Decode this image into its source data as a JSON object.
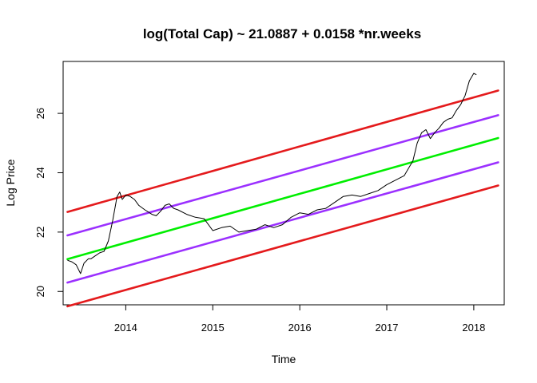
{
  "chart_data": {
    "type": "line",
    "title": "log(Total Cap) ~ 21.0887 + 0.0158 *nr.weeks",
    "xlabel": "Time",
    "ylabel": "Log Price",
    "xlim": [
      2013.28,
      2018.35
    ],
    "ylim": [
      19.55,
      27.75
    ],
    "x_ticks": [
      2014,
      2015,
      2016,
      2017,
      2018
    ],
    "x_tick_labels": [
      "2014",
      "2015",
      "2016",
      "2017",
      "2018"
    ],
    "y_ticks": [
      20,
      22,
      24,
      26
    ],
    "y_tick_labels": [
      "20",
      "22",
      "24",
      "26"
    ],
    "grid": false,
    "bands": [
      {
        "color": "#e41a1c",
        "x": [
          2013.33,
          2018.28
        ],
        "y": [
          22.68,
          26.77
        ]
      },
      {
        "color": "#9b30ff",
        "x": [
          2013.33,
          2018.28
        ],
        "y": [
          21.89,
          25.94
        ]
      },
      {
        "color": "#00ee00",
        "x": [
          2013.33,
          2018.28
        ],
        "y": [
          21.09,
          25.17
        ]
      },
      {
        "color": "#9b30ff",
        "x": [
          2013.33,
          2018.28
        ],
        "y": [
          20.3,
          24.35
        ]
      },
      {
        "color": "#e41a1c",
        "x": [
          2013.33,
          2018.28
        ],
        "y": [
          19.5,
          23.57
        ]
      }
    ],
    "series": [
      {
        "color": "#000000",
        "x": [
          2013.33,
          2013.38,
          2013.43,
          2013.48,
          2013.52,
          2013.57,
          2013.6,
          2013.65,
          2013.7,
          2013.75,
          2013.8,
          2013.85,
          2013.9,
          2013.93,
          2013.96,
          2014.0,
          2014.05,
          2014.1,
          2014.15,
          2014.22,
          2014.3,
          2014.35,
          2014.4,
          2014.45,
          2014.5,
          2014.55,
          2014.6,
          2014.7,
          2014.8,
          2014.9,
          2015.0,
          2015.1,
          2015.2,
          2015.3,
          2015.4,
          2015.5,
          2015.6,
          2015.7,
          2015.8,
          2015.9,
          2016.0,
          2016.1,
          2016.2,
          2016.3,
          2016.4,
          2016.5,
          2016.6,
          2016.7,
          2016.8,
          2016.9,
          2017.0,
          2017.1,
          2017.2,
          2017.3,
          2017.35,
          2017.4,
          2017.45,
          2017.5,
          2017.55,
          2017.6,
          2017.65,
          2017.7,
          2017.75,
          2017.8,
          2017.85,
          2017.9,
          2017.95,
          2018.0,
          2018.03
        ],
        "y": [
          21.05,
          21.0,
          20.9,
          20.6,
          20.95,
          21.1,
          21.1,
          21.2,
          21.3,
          21.35,
          21.7,
          22.4,
          23.2,
          23.35,
          23.1,
          23.25,
          23.2,
          23.1,
          22.9,
          22.75,
          22.6,
          22.55,
          22.7,
          22.9,
          22.95,
          22.8,
          22.75,
          22.6,
          22.5,
          22.45,
          22.05,
          22.15,
          22.2,
          22.0,
          22.05,
          22.1,
          22.25,
          22.15,
          22.25,
          22.5,
          22.65,
          22.6,
          22.75,
          22.8,
          23.0,
          23.2,
          23.25,
          23.2,
          23.3,
          23.4,
          23.6,
          23.75,
          23.9,
          24.4,
          25.0,
          25.35,
          25.45,
          25.15,
          25.35,
          25.5,
          25.7,
          25.8,
          25.85,
          26.1,
          26.3,
          26.6,
          27.1,
          27.35,
          27.3
        ]
      }
    ]
  }
}
